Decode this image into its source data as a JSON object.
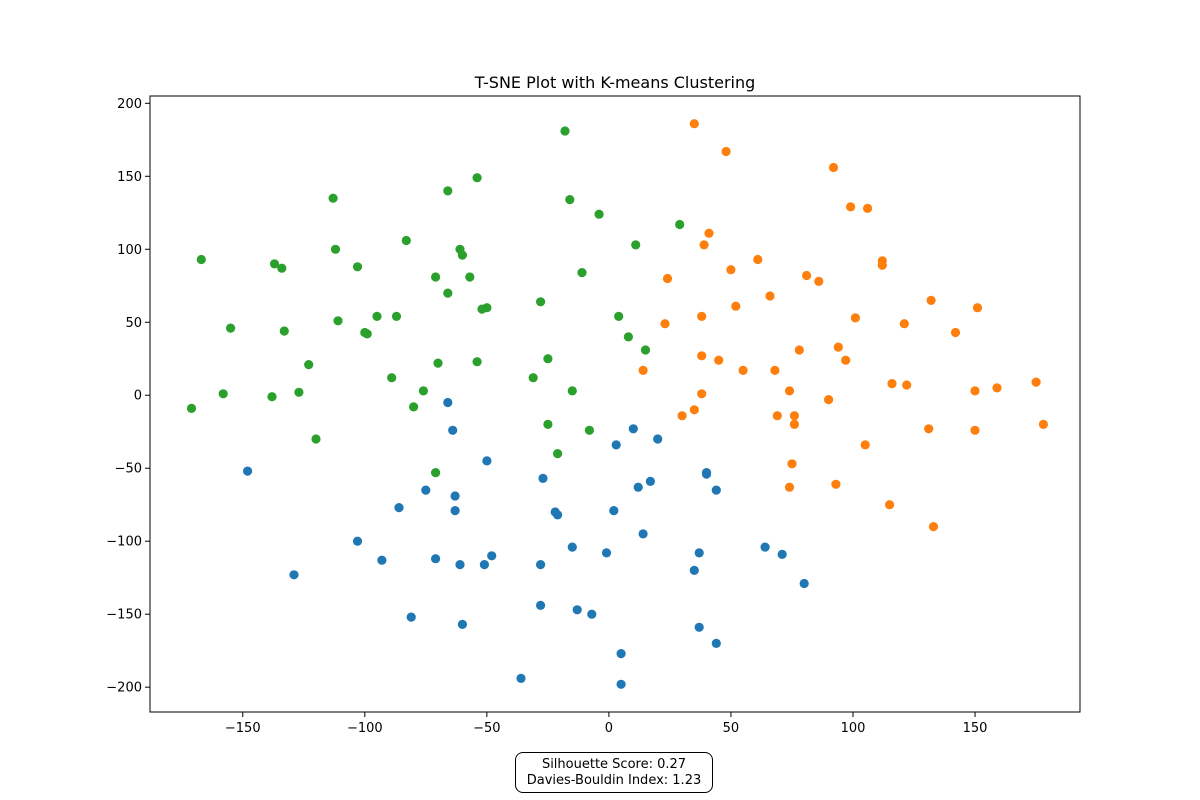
{
  "chart_data": {
    "type": "scatter",
    "title": "T-SNE Plot with K-means Clustering",
    "xlabel": "",
    "ylabel": "",
    "xlim": [
      -188,
      193
    ],
    "ylim": [
      -217,
      205
    ],
    "xticks": [
      -150,
      -100,
      -50,
      0,
      50,
      100,
      150
    ],
    "yticks": [
      -200,
      -150,
      -100,
      -50,
      0,
      50,
      100,
      150,
      200
    ],
    "xtick_labels": [
      "−150",
      "−100",
      "−50",
      "0",
      "50",
      "100",
      "150"
    ],
    "ytick_labels": [
      "−200",
      "−150",
      "−100",
      "−50",
      "0",
      "50",
      "100",
      "150",
      "200"
    ],
    "grid": false,
    "legend": "none",
    "series": [
      {
        "color": "#1f77b4",
        "points": [
          [
            -66,
            -5
          ],
          [
            -64,
            -24
          ],
          [
            -50,
            -45
          ],
          [
            -148,
            -52
          ],
          [
            -27,
            -57
          ],
          [
            -63,
            -69
          ],
          [
            -75,
            -65
          ],
          [
            -86,
            -77
          ],
          [
            -63,
            -79
          ],
          [
            -22,
            -80
          ],
          [
            -21,
            -82
          ],
          [
            3,
            -34
          ],
          [
            10,
            -23
          ],
          [
            20,
            -30
          ],
          [
            40,
            -53
          ],
          [
            40,
            -54
          ],
          [
            44,
            -65
          ],
          [
            12,
            -63
          ],
          [
            17,
            -59
          ],
          [
            2,
            -79
          ],
          [
            -15,
            -104
          ],
          [
            14,
            -95
          ],
          [
            -1,
            -108
          ],
          [
            -103,
            -100
          ],
          [
            -129,
            -123
          ],
          [
            -93,
            -113
          ],
          [
            -71,
            -112
          ],
          [
            -61,
            -116
          ],
          [
            -48,
            -110
          ],
          [
            -51,
            -116
          ],
          [
            -28,
            -116
          ],
          [
            -81,
            -152
          ],
          [
            -60,
            -157
          ],
          [
            -28,
            -144
          ],
          [
            -13,
            -147
          ],
          [
            -7,
            -150
          ],
          [
            5,
            -177
          ],
          [
            5,
            -198
          ],
          [
            -36,
            -194
          ],
          [
            35,
            -120
          ],
          [
            37,
            -108
          ],
          [
            37,
            -159
          ],
          [
            44,
            -170
          ],
          [
            64,
            -104
          ],
          [
            71,
            -109
          ],
          [
            80,
            -129
          ]
        ]
      },
      {
        "color": "#ff7f0e",
        "points": [
          [
            35,
            186
          ],
          [
            48,
            167
          ],
          [
            92,
            156
          ],
          [
            99,
            129
          ],
          [
            106,
            128
          ],
          [
            41,
            111
          ],
          [
            39,
            103
          ],
          [
            112,
            92
          ],
          [
            112,
            89
          ],
          [
            61,
            93
          ],
          [
            50,
            86
          ],
          [
            24,
            80
          ],
          [
            81,
            82
          ],
          [
            86,
            78
          ],
          [
            66,
            68
          ],
          [
            132,
            65
          ],
          [
            151,
            60
          ],
          [
            52,
            61
          ],
          [
            101,
            53
          ],
          [
            23,
            49
          ],
          [
            121,
            49
          ],
          [
            38,
            54
          ],
          [
            142,
            43
          ],
          [
            94,
            33
          ],
          [
            78,
            31
          ],
          [
            97,
            24
          ],
          [
            38,
            27
          ],
          [
            45,
            24
          ],
          [
            55,
            17
          ],
          [
            68,
            17
          ],
          [
            14,
            17
          ],
          [
            116,
            8
          ],
          [
            122,
            7
          ],
          [
            175,
            9
          ],
          [
            159,
            5
          ],
          [
            150,
            3
          ],
          [
            74,
            3
          ],
          [
            38,
            1
          ],
          [
            90,
            -3
          ],
          [
            30,
            -14
          ],
          [
            35,
            -10
          ],
          [
            69,
            -14
          ],
          [
            76,
            -14
          ],
          [
            76,
            -20
          ],
          [
            131,
            -23
          ],
          [
            150,
            -24
          ],
          [
            178,
            -20
          ],
          [
            105,
            -34
          ],
          [
            75,
            -47
          ],
          [
            93,
            -61
          ],
          [
            74,
            -63
          ],
          [
            115,
            -75
          ],
          [
            133,
            -90
          ]
        ]
      },
      {
        "color": "#2ca02c",
        "points": [
          [
            -18,
            181
          ],
          [
            -54,
            149
          ],
          [
            -66,
            140
          ],
          [
            -113,
            135
          ],
          [
            -16,
            134
          ],
          [
            -4,
            124
          ],
          [
            29,
            117
          ],
          [
            11,
            103
          ],
          [
            -167,
            93
          ],
          [
            -137,
            90
          ],
          [
            -134,
            87
          ],
          [
            -112,
            100
          ],
          [
            -103,
            88
          ],
          [
            -83,
            106
          ],
          [
            -61,
            100
          ],
          [
            -60,
            96
          ],
          [
            -71,
            81
          ],
          [
            -57,
            81
          ],
          [
            -11,
            84
          ],
          [
            -66,
            70
          ],
          [
            -28,
            64
          ],
          [
            -50,
            60
          ],
          [
            -52,
            59
          ],
          [
            -155,
            46
          ],
          [
            -133,
            44
          ],
          [
            -111,
            51
          ],
          [
            -100,
            43
          ],
          [
            -99,
            42
          ],
          [
            -95,
            54
          ],
          [
            -87,
            54
          ],
          [
            4,
            54
          ],
          [
            8,
            40
          ],
          [
            15,
            31
          ],
          [
            -25,
            25
          ],
          [
            -54,
            23
          ],
          [
            -70,
            22
          ],
          [
            -123,
            21
          ],
          [
            -89,
            12
          ],
          [
            -31,
            12
          ],
          [
            -76,
            3
          ],
          [
            -15,
            3
          ],
          [
            -158,
            1
          ],
          [
            -127,
            2
          ],
          [
            -138,
            -1
          ],
          [
            -171,
            -9
          ],
          [
            -80,
            -8
          ],
          [
            -120,
            -30
          ],
          [
            -25,
            -20
          ],
          [
            -8,
            -24
          ],
          [
            -21,
            -40
          ],
          [
            -71,
            -53
          ]
        ]
      }
    ]
  },
  "metrics": {
    "silhouette": "Silhouette Score: 0.27",
    "davies_bouldin": "Davies-Bouldin Index: 1.23"
  }
}
